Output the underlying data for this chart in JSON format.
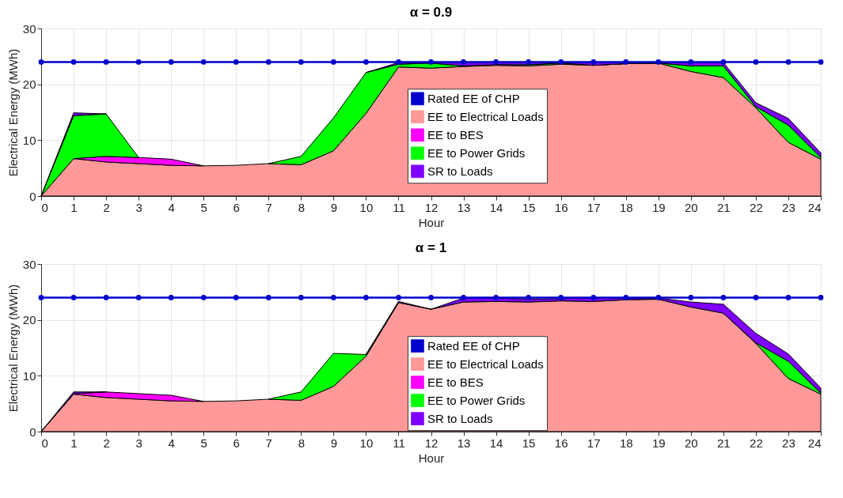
{
  "chart_data": [
    {
      "type": "area",
      "title": "α = 0.9",
      "xlabel": "Hour",
      "ylabel": "Electrical Energy (MWh)",
      "stacked": true,
      "x": [
        0,
        1,
        2,
        3,
        4,
        5,
        6,
        7,
        8,
        9,
        10,
        11,
        12,
        13,
        14,
        15,
        16,
        17,
        18,
        19,
        20,
        21,
        22,
        23,
        24
      ],
      "xlim": [
        0,
        24
      ],
      "xticks": [
        0,
        1,
        2,
        3,
        4,
        5,
        6,
        7,
        8,
        9,
        10,
        11,
        12,
        13,
        14,
        15,
        16,
        17,
        18,
        19,
        20,
        21,
        22,
        23,
        24
      ],
      "ylim": [
        0,
        30
      ],
      "yticks": [
        0,
        10,
        20,
        30
      ],
      "grid": true,
      "legend": "right",
      "series": [
        {
          "name": "EE to Electrical Loads",
          "color": "#ff9999",
          "values": [
            0,
            6.7,
            6.1,
            5.8,
            5.5,
            5.4,
            5.5,
            5.8,
            5.6,
            8.1,
            14.8,
            23.1,
            22.9,
            23.2,
            23.4,
            23.3,
            23.6,
            23.4,
            23.7,
            23.8,
            22.3,
            21.2,
            15.8,
            9.6,
            6.6
          ]
        },
        {
          "name": "EE to BES",
          "color": "#ff00ff",
          "values": [
            null,
            0,
            1.0,
            1.1,
            1.1,
            0,
            null,
            null,
            null,
            null,
            null,
            null,
            null,
            null,
            null,
            null,
            null,
            null,
            null,
            null,
            null,
            null,
            null,
            null,
            null
          ]
        },
        {
          "name": "EE to Power Grids",
          "color": "#00ff00",
          "values": [
            0,
            7.7,
            7.6,
            0,
            null,
            null,
            null,
            0,
            1.5,
            5.9,
            7.3,
            0.5,
            0.9,
            0.1,
            0.1,
            0.2,
            0.2,
            0,
            0,
            0,
            1.0,
            2.1,
            0.2,
            3.1,
            0.3
          ]
        },
        {
          "name": "SR to Loads",
          "color": "#7f00ff",
          "values": [
            0,
            0.5,
            0,
            null,
            null,
            null,
            null,
            null,
            null,
            null,
            0,
            0.3,
            0.2,
            0.6,
            0.4,
            0.4,
            0.1,
            0.5,
            0.2,
            0.1,
            0.6,
            0.6,
            0.7,
            1.2,
            0.8
          ]
        },
        {
          "name": "Rated EE of CHP",
          "type": "line",
          "marker": "circle",
          "color": "#0000cc",
          "values": [
            24,
            24,
            24,
            24,
            24,
            24,
            24,
            24,
            24,
            24,
            24,
            24,
            24,
            24,
            24,
            24,
            24,
            24,
            24,
            24,
            24,
            24,
            24,
            24,
            24
          ]
        }
      ]
    },
    {
      "type": "area",
      "title": "α = 1",
      "xlabel": "Hour",
      "ylabel": "Electrical Energy (MWh)",
      "stacked": true,
      "x": [
        0,
        1,
        2,
        3,
        4,
        5,
        6,
        7,
        8,
        9,
        10,
        11,
        12,
        13,
        14,
        15,
        16,
        17,
        18,
        19,
        20,
        21,
        22,
        23,
        24
      ],
      "xlim": [
        0,
        24
      ],
      "xticks": [
        0,
        1,
        2,
        3,
        4,
        5,
        6,
        7,
        8,
        9,
        10,
        11,
        12,
        13,
        14,
        15,
        16,
        17,
        18,
        19,
        20,
        21,
        22,
        23,
        24
      ],
      "ylim": [
        0,
        30
      ],
      "yticks": [
        0,
        10,
        20,
        30
      ],
      "grid": true,
      "legend": "right",
      "series": [
        {
          "name": "EE to Electrical Loads",
          "color": "#ff9999",
          "values": [
            0,
            6.7,
            6.1,
            5.8,
            5.5,
            5.4,
            5.5,
            5.8,
            5.6,
            8.1,
            13.5,
            23.1,
            21.9,
            23.2,
            23.3,
            23.2,
            23.4,
            23.3,
            23.6,
            23.7,
            22.3,
            21.2,
            15.8,
            9.5,
            6.7
          ]
        },
        {
          "name": "EE to BES",
          "color": "#ff00ff",
          "values": [
            0,
            0.1,
            1.0,
            1.0,
            1.0,
            0,
            null,
            null,
            null,
            null,
            null,
            null,
            null,
            null,
            null,
            null,
            null,
            null,
            null,
            null,
            null,
            null,
            null,
            null,
            null
          ]
        },
        {
          "name": "EE to Power Grids",
          "color": "#00ff00",
          "values": [
            null,
            null,
            null,
            null,
            null,
            null,
            null,
            0,
            1.5,
            5.9,
            0.3,
            0,
            null,
            null,
            null,
            null,
            null,
            null,
            null,
            null,
            null,
            0,
            0.1,
            3.1,
            0.2
          ]
        },
        {
          "name": "SR to Loads",
          "color": "#7f00ff",
          "values": [
            0,
            0.3,
            0,
            null,
            null,
            null,
            null,
            null,
            null,
            null,
            0,
            0.2,
            0,
            0.7,
            0.6,
            0.5,
            0.4,
            0.6,
            0.3,
            0.2,
            0.9,
            1.6,
            1.7,
            1.3,
            0.9
          ]
        },
        {
          "name": "Rated EE of CHP",
          "type": "line",
          "marker": "circle",
          "color": "#0000cc",
          "values": [
            24,
            24,
            24,
            24,
            24,
            24,
            24,
            24,
            24,
            24,
            24,
            24,
            24,
            24,
            24,
            24,
            24,
            24,
            24,
            24,
            24,
            24,
            24,
            24,
            24
          ]
        }
      ]
    }
  ]
}
